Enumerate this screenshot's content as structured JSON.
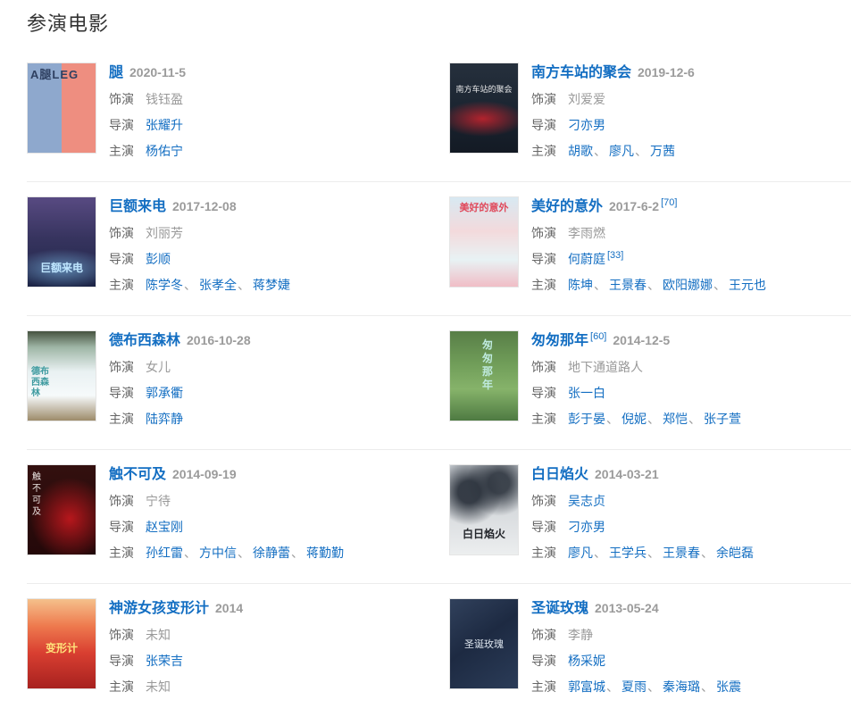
{
  "section": {
    "title": "参演电影"
  },
  "labels": {
    "role": "饰演",
    "director": "导演",
    "starring": "主演",
    "separator": "、"
  },
  "colors": {
    "link_blue": "#136ec2",
    "label_gray": "#666666",
    "value_gray": "#999999",
    "date_gray": "#9b9b9b",
    "divider": "#ececec",
    "heading": "#333333"
  },
  "movies": [
    {
      "title": "腿",
      "title_ref": "",
      "date": "2020-11-5",
      "date_ref": "",
      "role": {
        "text": "钱钰盈",
        "link": false
      },
      "director": {
        "text": "张耀升",
        "ref": ""
      },
      "cast": [
        {
          "text": "杨佑宁",
          "link": true
        }
      ],
      "poster": {
        "bg": "linear-gradient(90deg,#8ea8cd 0 50%,#ee8e80 50% 100%)",
        "text": "A腿LEG",
        "text_style": "top:2px;left:3px;right:2px;color:#2f4061;font-size:13px;font-weight:bold;letter-spacing:1px"
      }
    },
    {
      "title": "南方车站的聚会",
      "title_ref": "",
      "date": "2019-12-6",
      "date_ref": "",
      "role": {
        "text": "刘爱爱",
        "link": false
      },
      "director": {
        "text": "刁亦男",
        "ref": ""
      },
      "cast": [
        {
          "text": "胡歌",
          "link": true
        },
        {
          "text": "廖凡",
          "link": true
        },
        {
          "text": "万茜",
          "link": true
        }
      ],
      "poster": {
        "bg": "radial-gradient(ellipse 62% 20% at 48% 62%,rgba(205,35,45,0.85),rgba(205,35,45,0) 100%),linear-gradient(180deg,#26303d 0%,#1a2430 55%,#131a24 100%)",
        "text": "南方车站的聚会",
        "text_style": "top:22%;left:3px;right:3px;color:#e8e9ea;font-size:9px;text-align:center"
      }
    },
    {
      "title": "巨额来电",
      "title_ref": "",
      "date": "2017-12-08",
      "date_ref": "",
      "role": {
        "text": "刘丽芳",
        "link": false
      },
      "director": {
        "text": "彭顺",
        "ref": ""
      },
      "cast": [
        {
          "text": "陈学冬",
          "link": true
        },
        {
          "text": "张孝全",
          "link": true
        },
        {
          "text": "蒋梦婕",
          "link": true
        }
      ],
      "poster": {
        "bg": "radial-gradient(ellipse 75% 22% at 50% 80%,rgba(140,210,255,0.55),rgba(140,210,255,0) 100%),linear-gradient(180deg,#584a82 0%,#37345f 45%,#1d2547 100%)",
        "text": "巨额来电",
        "text_style": "bottom:13px;left:0;right:0;color:#bfe6ff;font-size:12px;font-weight:bold;text-align:center"
      }
    },
    {
      "title": "美好的意外",
      "title_ref": "",
      "date": "2017-6-2",
      "date_ref": "[70]",
      "role": {
        "text": "李雨燃",
        "link": false
      },
      "director": {
        "text": "何蔚庭",
        "ref": "[33]"
      },
      "cast": [
        {
          "text": "陈坤",
          "link": true
        },
        {
          "text": "王景春",
          "link": true
        },
        {
          "text": "欧阳娜娜",
          "link": true
        },
        {
          "text": "王元也",
          "link": true
        }
      ],
      "poster": {
        "bg": "linear-gradient(180deg,#d8e9f2 0%,#f3dadc 38%,#e8f2f4 70%,#f0bdc6 100%)",
        "text": "美好的意外",
        "text_style": "top:3px;left:0;right:0;color:#e0485a;font-size:11px;font-weight:bold;text-align:center"
      }
    },
    {
      "title": "德布西森林",
      "title_ref": "",
      "date": "2016-10-28",
      "date_ref": "",
      "role": {
        "text": "女儿",
        "link": false
      },
      "director": {
        "text": "郭承衢",
        "ref": ""
      },
      "cast": [
        {
          "text": "陆弈静",
          "link": true
        }
      ],
      "poster": {
        "bg": "linear-gradient(180deg,#45523f 0%,#9fb6a6 18%,#e9f1f2 45%,#f6fafb 72%,#9d8b6a 100%)",
        "text": "德布西森林",
        "text_style": "top:40%;left:4px;width:26px;color:#3f9ba0;font-size:10px;font-weight:bold;line-height:12px"
      }
    },
    {
      "title": "匆匆那年",
      "title_ref": "[60]",
      "date": "2014-12-5",
      "date_ref": "",
      "role": {
        "text": "地下通道路人",
        "link": false
      },
      "director": {
        "text": "张一白",
        "ref": ""
      },
      "cast": [
        {
          "text": "彭于晏",
          "link": true
        },
        {
          "text": "倪妮",
          "link": true
        },
        {
          "text": "郑恺",
          "link": true
        },
        {
          "text": "张子萱",
          "link": true
        }
      ],
      "poster": {
        "bg": "linear-gradient(180deg,#587e47 0%,#6f9c58 35%,#86b36a 65%,#4e7a42 100%)",
        "text": "匆匆那年",
        "text_style": "top:8px;left:36px;width:15px;color:#bfeadf;font-size:12px;font-weight:bold;line-height:15px"
      }
    },
    {
      "title": "触不可及",
      "title_ref": "",
      "date": "2014-09-19",
      "date_ref": "",
      "role": {
        "text": "宁待",
        "link": false
      },
      "director": {
        "text": "赵宝刚",
        "ref": ""
      },
      "cast": [
        {
          "text": "孙红雷",
          "link": true
        },
        {
          "text": "方中信",
          "link": true
        },
        {
          "text": "徐静蕾",
          "link": true
        },
        {
          "text": "蒋勤勤",
          "link": true
        }
      ],
      "poster": {
        "bg": "radial-gradient(ellipse 58% 46% at 62% 60%,rgba(198,24,30,0.9),rgba(80,10,12,0) 100%),linear-gradient(180deg,#33100f 0%,#240809 100%)",
        "text": "触不可及",
        "text_style": "top:7px;left:5px;width:12px;color:#e9e3e0;font-size:10px;line-height:13px"
      }
    },
    {
      "title": "白日焰火",
      "title_ref": "",
      "date": "2014-03-21",
      "date_ref": "",
      "role": {
        "text": "吴志贞",
        "link": true
      },
      "director": {
        "text": "刁亦男",
        "ref": ""
      },
      "cast": [
        {
          "text": "廖凡",
          "link": true
        },
        {
          "text": "王学兵",
          "link": true
        },
        {
          "text": "王景春",
          "link": true
        },
        {
          "text": "余皑磊",
          "link": true
        }
      ],
      "poster": {
        "bg": "radial-gradient(circle at 28% 30%,rgba(45,52,62,0.95) 14%,rgba(45,52,62,0) 42%),radial-gradient(circle at 72% 20%,rgba(45,52,62,0.9) 12%,rgba(45,52,62,0) 38%),linear-gradient(180deg,#c7ccd1 0%,#d9dcdf 55%,#eceeef 100%)",
        "text": "白日焰火",
        "text_style": "bottom:15px;left:0;right:0;color:#23262b;font-size:12px;font-weight:bold;text-align:center"
      }
    },
    {
      "title": "神游女孩变形计",
      "title_ref": "",
      "date": "2014",
      "date_ref": "",
      "role": {
        "text": "未知",
        "link": false
      },
      "director": {
        "text": "张荣吉",
        "ref": ""
      },
      "cast": [
        {
          "text": "未知",
          "link": false
        }
      ],
      "poster": {
        "bg": "linear-gradient(180deg,#f5c08b 0%,#ee7a4e 30%,#d93f31 60%,#a7211f 100%)",
        "text": "变形计",
        "text_style": "top:46%;left:0;right:0;color:#ffe27a;font-size:12px;font-weight:bold;text-align:center"
      }
    },
    {
      "title": "圣诞玫瑰",
      "title_ref": "",
      "date": "2013-05-24",
      "date_ref": "",
      "role": {
        "text": "李静",
        "link": false
      },
      "director": {
        "text": "杨采妮",
        "ref": ""
      },
      "cast": [
        {
          "text": "郭富城",
          "link": true
        },
        {
          "text": "夏雨",
          "link": true
        },
        {
          "text": "秦海璐",
          "link": true
        },
        {
          "text": "张震",
          "link": true
        }
      ],
      "poster": {
        "bg": "linear-gradient(145deg,#31415c 0%,#1d2a42 45%,#2b3c58 100%)",
        "text": "圣诞玫瑰",
        "text_style": "top:42%;left:0;right:0;color:#dde5ee;font-size:11px;text-align:center"
      }
    }
  ]
}
